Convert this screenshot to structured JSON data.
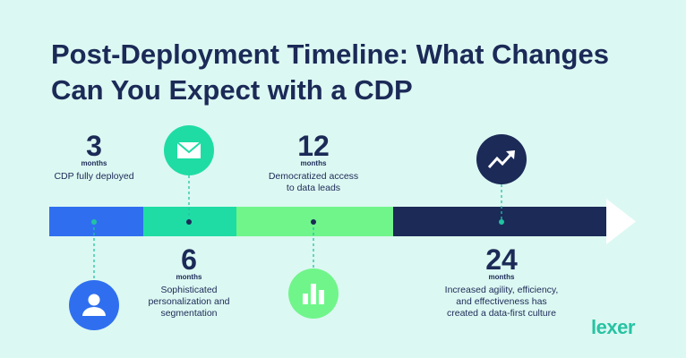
{
  "header": {
    "title_lines": [
      "Post-Deployment Timeline: What Changes",
      "Can You Expect with a CDP"
    ]
  },
  "milestones": [
    {
      "number": "3",
      "unit": "months",
      "description_lines": [
        "CDP fully deployed"
      ]
    },
    {
      "number": "6",
      "unit": "months",
      "description_lines": [
        "Sophisticated",
        "personalization and",
        "segmentation"
      ]
    },
    {
      "number": "12",
      "unit": "months",
      "description_lines": [
        "Democratized access",
        "to data leads"
      ]
    },
    {
      "number": "24",
      "unit": "months",
      "description_lines": [
        "Increased agility, efficiency,",
        "and effectiveness has",
        "created a data-first culture"
      ]
    }
  ],
  "logo": "lexer"
}
